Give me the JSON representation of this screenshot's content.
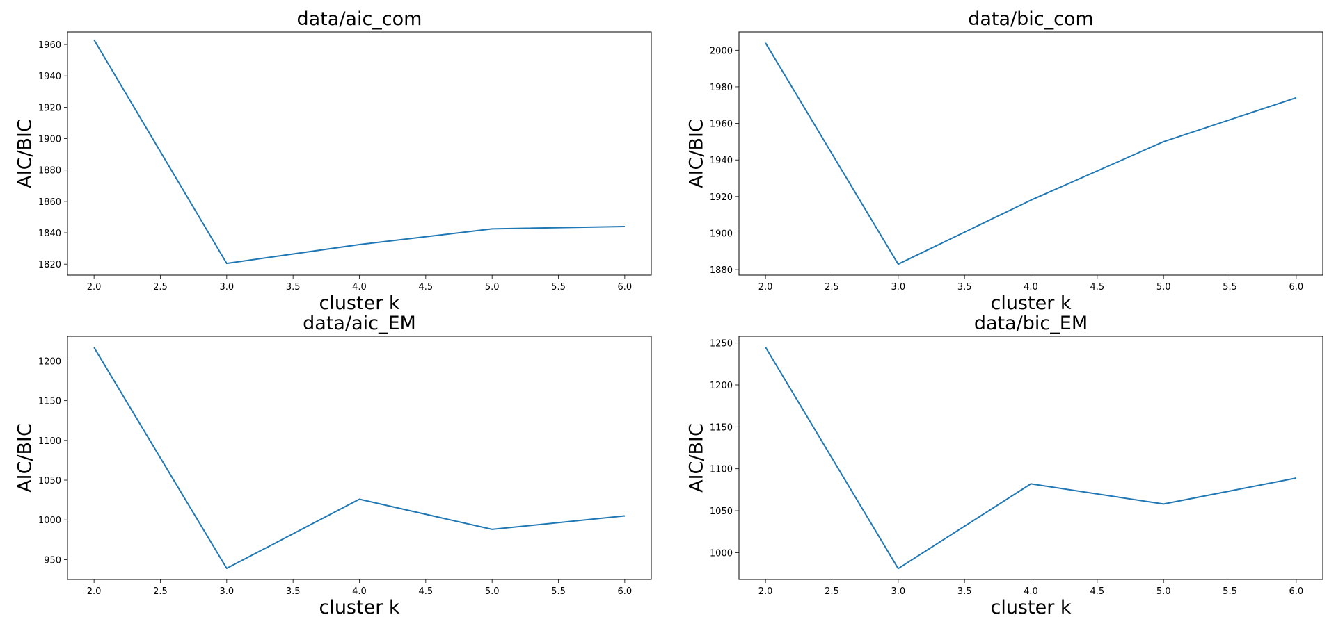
{
  "chart_data": [
    {
      "type": "line",
      "title": "data/aic_com",
      "xlabel": "cluster k",
      "ylabel": "AIC/BIC",
      "x": [
        2,
        3,
        4,
        5,
        6
      ],
      "series": [
        {
          "values": [
            1963,
            1820.5,
            1832.5,
            1842.5,
            1844
          ]
        }
      ],
      "xlim": [
        1.8,
        6.2
      ],
      "ylim": [
        1813,
        1968
      ],
      "xticks": [
        2.0,
        2.5,
        3.0,
        3.5,
        4.0,
        4.5,
        5.0,
        5.5,
        6.0
      ],
      "xtick_labels": [
        "2.0",
        "2.5",
        "3.0",
        "3.5",
        "4.0",
        "4.5",
        "5.0",
        "5.5",
        "6.0"
      ],
      "yticks": [
        1820,
        1840,
        1860,
        1880,
        1900,
        1920,
        1940,
        1960
      ],
      "ytick_labels": [
        "1820",
        "1840",
        "1860",
        "1880",
        "1900",
        "1920",
        "1940",
        "1960"
      ],
      "grid": false,
      "color": "#1f77b4"
    },
    {
      "type": "line",
      "title": "data/bic_com",
      "xlabel": "cluster k",
      "ylabel": "AIC/BIC",
      "x": [
        2,
        3,
        4,
        5,
        6
      ],
      "series": [
        {
          "values": [
            2004,
            1883,
            1918,
            1950,
            1974
          ]
        }
      ],
      "xlim": [
        1.8,
        6.2
      ],
      "ylim": [
        1877,
        2010
      ],
      "xticks": [
        2.0,
        2.5,
        3.0,
        3.5,
        4.0,
        4.5,
        5.0,
        5.5,
        6.0
      ],
      "xtick_labels": [
        "2.0",
        "2.5",
        "3.0",
        "3.5",
        "4.0",
        "4.5",
        "5.0",
        "5.5",
        "6.0"
      ],
      "yticks": [
        1880,
        1900,
        1920,
        1940,
        1960,
        1980,
        2000
      ],
      "ytick_labels": [
        "1880",
        "1900",
        "1920",
        "1940",
        "1960",
        "1980",
        "2000"
      ],
      "grid": false,
      "color": "#1f77b4"
    },
    {
      "type": "line",
      "title": "data/aic_EM",
      "xlabel": "cluster k",
      "ylabel": "AIC/BIC",
      "x": [
        2,
        3,
        4,
        5,
        6
      ],
      "series": [
        {
          "values": [
            1217,
            939,
            1026,
            988,
            1005
          ]
        }
      ],
      "xlim": [
        1.8,
        6.2
      ],
      "ylim": [
        925,
        1231
      ],
      "xticks": [
        2.0,
        2.5,
        3.0,
        3.5,
        4.0,
        4.5,
        5.0,
        5.5,
        6.0
      ],
      "xtick_labels": [
        "2.0",
        "2.5",
        "3.0",
        "3.5",
        "4.0",
        "4.5",
        "5.0",
        "5.5",
        "6.0"
      ],
      "yticks": [
        950,
        1000,
        1050,
        1100,
        1150,
        1200
      ],
      "ytick_labels": [
        "950",
        "1000",
        "1050",
        "1100",
        "1150",
        "1200"
      ],
      "grid": false,
      "color": "#1f77b4"
    },
    {
      "type": "line",
      "title": "data/bic_EM",
      "xlabel": "cluster k",
      "ylabel": "AIC/BIC",
      "x": [
        2,
        3,
        4,
        5,
        6
      ],
      "series": [
        {
          "values": [
            1245,
            981,
            1082,
            1058,
            1089
          ]
        }
      ],
      "xlim": [
        1.8,
        6.2
      ],
      "ylim": [
        968,
        1258
      ],
      "xticks": [
        2.0,
        2.5,
        3.0,
        3.5,
        4.0,
        4.5,
        5.0,
        5.5,
        6.0
      ],
      "xtick_labels": [
        "2.0",
        "2.5",
        "3.0",
        "3.5",
        "4.0",
        "4.5",
        "5.0",
        "5.5",
        "6.0"
      ],
      "yticks": [
        1000,
        1050,
        1100,
        1150,
        1200,
        1250
      ],
      "ytick_labels": [
        "1000",
        "1050",
        "1100",
        "1150",
        "1200",
        "1250"
      ],
      "grid": false,
      "color": "#1f77b4"
    }
  ]
}
